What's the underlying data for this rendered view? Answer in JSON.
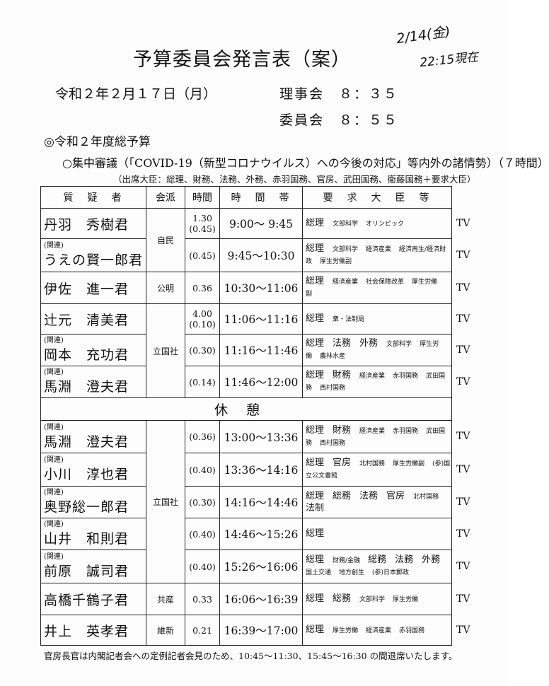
{
  "title": "予算委員会発言表（案）",
  "handwritten": {
    "line1": "2/14(金)",
    "line2": "22:15現在"
  },
  "date": "令和２年２月１７日（月）",
  "rijikai": "理事会　８：３５",
  "iinkai": "委員会　８：５５",
  "budget": "◎令和２年度総予算",
  "session": "○集中審議（「COVID-19（新型コロナウイルス）への今後の対応」等内外の諸情勢）（７時間）",
  "attending": "（出席大臣：総理、財務、法務、外務、赤羽国務、官房、武田国務、衛藤国務＋要求大臣）",
  "headers": [
    "質　疑　者",
    "会派",
    "時間",
    "時　間　帯",
    "要　求　大　臣　等"
  ],
  "break_label": "休憩",
  "rows": [
    {
      "rel": "",
      "name": "丹羽　秀樹君",
      "party": "自民",
      "span": 2,
      "time": "1.30\n(0.45)",
      "slot": "9:00～ 9:45",
      "ministers": [
        [
          "総理",
          "b"
        ],
        [
          "文部科学",
          "s"
        ],
        [
          "オリンピック",
          "s"
        ]
      ],
      "tv": "TV"
    },
    {
      "rel": "(関連)",
      "name": "うえの賢一郎君",
      "time": "(0.45)",
      "slot": "9:45～10:30",
      "ministers": [
        [
          "総理",
          "b"
        ],
        [
          "文部科学",
          "s"
        ],
        [
          "経済産業",
          "s"
        ],
        [
          "経済再生/経済財政",
          "s"
        ],
        [
          "厚生労働副",
          "s"
        ]
      ],
      "tv": "TV"
    },
    {
      "rel": "",
      "name": "伊佐　進一君",
      "party": "公明",
      "span": 1,
      "time": "0.36",
      "slot": "10:30～11:06",
      "ministers": [
        [
          "総理",
          "b"
        ],
        [
          "経済産業",
          "s"
        ],
        [
          "社会保障改革",
          "s"
        ],
        [
          "厚生労働副",
          "s"
        ]
      ],
      "tv": "TV"
    },
    {
      "rel": "",
      "name": "辻元　清美君",
      "party": "立国社",
      "span": 3,
      "time": "4.00\n(0.10)",
      "slot": "11:06～11:16",
      "ministers": [
        [
          "総理",
          "b"
        ],
        [
          "衆・法制局",
          "s"
        ]
      ],
      "tv": "TV"
    },
    {
      "rel": "(関連)",
      "name": "岡本　充功君",
      "time": "(0.30)",
      "slot": "11:16～11:46",
      "ministers": [
        [
          "総理",
          "b"
        ],
        [
          "法務",
          "b"
        ],
        [
          "外務",
          "b"
        ],
        [
          "文部科学",
          "s"
        ],
        [
          "厚生労働",
          "s"
        ],
        [
          "農林水産",
          "s"
        ]
      ],
      "tv": "TV"
    },
    {
      "rel": "(関連)",
      "name": "馬淵　澄夫君",
      "time": "(0.14)",
      "slot": "11:46～12:00",
      "ministers": [
        [
          "総理",
          "b"
        ],
        [
          "財務",
          "b"
        ],
        [
          "経済産業",
          "s"
        ],
        [
          "赤羽国務",
          "s"
        ],
        [
          "武田国務",
          "s"
        ],
        [
          "西村国務",
          "s"
        ]
      ],
      "tv": "TV"
    },
    {
      "break": true
    },
    {
      "rel": "(関連)",
      "name": "馬淵　澄夫君",
      "party": "立国社",
      "span": 5,
      "time": "(0.36)",
      "slot": "13:00～13:36",
      "ministers": [
        [
          "総理",
          "b"
        ],
        [
          "財務",
          "b"
        ],
        [
          "経済産業",
          "s"
        ],
        [
          "赤羽国務",
          "s"
        ],
        [
          "武田国務",
          "s"
        ],
        [
          "西村国務",
          "s"
        ]
      ],
      "tv": "TV"
    },
    {
      "rel": "(関連)",
      "name": "小川　淳也君",
      "time": "(0.40)",
      "slot": "13:36～14:16",
      "ministers": [
        [
          "総理",
          "b"
        ],
        [
          "官房",
          "b"
        ],
        [
          "北村国務",
          "s"
        ],
        [
          "厚生労働副",
          "s"
        ],
        [
          "(参)国立公文書館",
          "s"
        ]
      ],
      "tv": "TV"
    },
    {
      "rel": "(関連)",
      "name": "奥野総一郎君",
      "time": "(0.30)",
      "slot": "14:16～14:46",
      "ministers": [
        [
          "総理",
          "b"
        ],
        [
          "総務",
          "b"
        ],
        [
          "法務",
          "b"
        ],
        [
          "官房",
          "b"
        ],
        [
          "北村国務",
          "s"
        ],
        [
          "法制",
          "b"
        ]
      ],
      "tv": "TV"
    },
    {
      "rel": "(関連)",
      "name": "山井　和則君",
      "time": "(0.40)",
      "slot": "14:46～15:26",
      "ministers": [
        [
          "総理",
          "b"
        ]
      ],
      "tv": "TV"
    },
    {
      "rel": "(関連)",
      "name": "前原　誠司君",
      "time": "(0.40)",
      "slot": "15:26～16:06",
      "ministers": [
        [
          "総理",
          "b"
        ],
        [
          "財務/金融",
          "s"
        ],
        [
          "総務",
          "b"
        ],
        [
          "法務",
          "b"
        ],
        [
          "外務",
          "b"
        ],
        [
          "国土交通",
          "s"
        ],
        [
          "地方創生",
          "s"
        ],
        [
          "(参)日本郵政",
          "s"
        ]
      ],
      "tv": "TV"
    },
    {
      "rel": "",
      "name": "高橋千鶴子君",
      "party": "共産",
      "span": 1,
      "time": "0.33",
      "slot": "16:06～16:39",
      "ministers": [
        [
          "総理",
          "b"
        ],
        [
          "総務",
          "b"
        ],
        [
          "文部科学",
          "s"
        ],
        [
          "厚生労働",
          "s"
        ]
      ],
      "tv": "TV"
    },
    {
      "rel": "",
      "name": "井上　英孝君",
      "party": "維新",
      "span": 1,
      "time": "0.21",
      "slot": "16:39～17:00",
      "ministers": [
        [
          "総理",
          "b"
        ],
        [
          "厚生労働",
          "s"
        ],
        [
          "経済産業",
          "s"
        ],
        [
          "赤羽国務",
          "s"
        ]
      ],
      "tv": "TV"
    }
  ],
  "footer": "官房長官は内閣記者会への定例記者会見のため、10:45～11:30、15:45～16:30 の間退席いたします。"
}
